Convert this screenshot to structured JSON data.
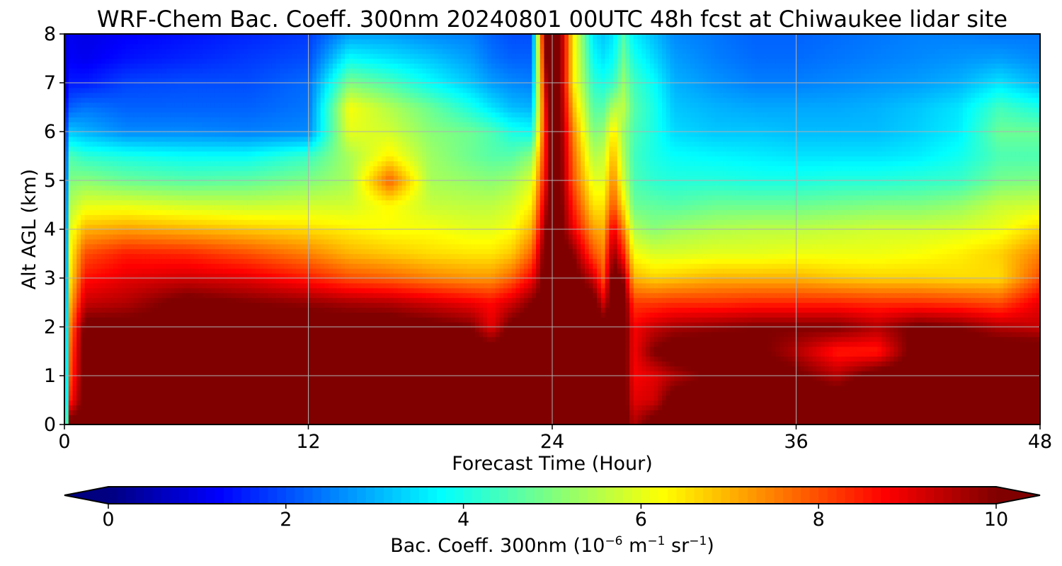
{
  "chart_data": {
    "type": "heatmap",
    "title": "WRF-Chem Bac. Coeff. 300nm  20240801 00UTC 48h fcst at Chiwaukee lidar site",
    "xlabel": "Forecast Time (Hour)",
    "ylabel": "Alt AGL (km)",
    "xlim": [
      0,
      48
    ],
    "ylim": [
      0,
      8
    ],
    "x_ticks": [
      0,
      12,
      24,
      36,
      48
    ],
    "y_ticks": [
      0,
      1,
      2,
      3,
      4,
      5,
      6,
      7,
      8
    ],
    "grid": true,
    "colorbar": {
      "label_main": "Bac. Coeff. 300nm  (10",
      "label_exp1": "−6",
      "label_mid": " m",
      "label_exp2": "−1",
      "label_mid2": " sr",
      "label_exp3": "−1",
      "label_end": ")",
      "range": [
        0,
        10
      ],
      "ticks": [
        0,
        2,
        4,
        6,
        8,
        10
      ],
      "extend": "both",
      "colormap": "jet"
    },
    "x": [
      0,
      0.3,
      1,
      3,
      6,
      9,
      12,
      14,
      16,
      18,
      20,
      21,
      22,
      23,
      23.7,
      24,
      24.3,
      25,
      26,
      26.5,
      27,
      27.5,
      28,
      29,
      30,
      32,
      34,
      36,
      38,
      40,
      42,
      44,
      46,
      48
    ],
    "y": [
      0,
      0.5,
      1,
      1.5,
      2,
      2.5,
      3,
      3.5,
      4,
      4.5,
      5,
      5.5,
      6,
      6.5,
      7,
      7.5,
      8
    ],
    "rows": [
      [
        1.5,
        10.5,
        10.5,
        10.5,
        10.5,
        10.5,
        10.5,
        10.5,
        10.5,
        10.5,
        10.5,
        10.5,
        10.5,
        10.5,
        10.5,
        10.5,
        10.5,
        10.5,
        10.5,
        10.5,
        10.5,
        10.5,
        9.5,
        10.5,
        10.5,
        10.5,
        10.5,
        10.5,
        10.5,
        10.5,
        10.5,
        10.5,
        10.5,
        10.5
      ],
      [
        1.5,
        8.5,
        10.5,
        10.5,
        10.5,
        10.5,
        10.5,
        10.5,
        10.5,
        10.5,
        10.5,
        10.5,
        10.5,
        10.5,
        10.5,
        10.5,
        10.5,
        10.5,
        10.5,
        10.5,
        10.5,
        10.5,
        9.0,
        9.2,
        10.5,
        10.5,
        10.5,
        10.5,
        10.5,
        10.5,
        10.5,
        10.5,
        10.5,
        10.5
      ],
      [
        1.5,
        8.0,
        10.5,
        10.5,
        10.5,
        10.5,
        10.5,
        10.5,
        10.5,
        10.5,
        10.5,
        10.5,
        10.5,
        10.5,
        10.5,
        10.5,
        10.5,
        10.5,
        10.5,
        10.5,
        10.5,
        10.5,
        8.8,
        9.0,
        9.5,
        10.2,
        10.5,
        10.2,
        9.5,
        10.5,
        10.5,
        10.5,
        10.5,
        10.5
      ],
      [
        1.5,
        7.8,
        10.5,
        10.5,
        10.5,
        10.5,
        10.5,
        10.5,
        10.5,
        10.5,
        10.5,
        10.5,
        10.5,
        10.5,
        10.5,
        10.5,
        10.5,
        10.5,
        10.5,
        10.5,
        10.5,
        10.5,
        8.8,
        10.0,
        10.5,
        10.5,
        10.2,
        9.5,
        8.5,
        8.5,
        10.5,
        10.5,
        10.5,
        10.5
      ],
      [
        1.5,
        7.5,
        10.3,
        10.3,
        10.2,
        10.2,
        10.5,
        10.5,
        10.5,
        10.3,
        10.0,
        9.0,
        10.3,
        10.5,
        10.5,
        10.5,
        10.5,
        10.5,
        10.5,
        10.5,
        10.5,
        10.5,
        8.8,
        9.3,
        9.6,
        9.8,
        10.0,
        10.0,
        10.0,
        9.5,
        10.2,
        10.0,
        9.5,
        9.3
      ],
      [
        1.5,
        7.0,
        9.3,
        9.5,
        10.3,
        10.0,
        9.8,
        9.6,
        9.5,
        9.2,
        8.9,
        8.7,
        9.2,
        10.0,
        10.5,
        10.5,
        10.5,
        10.5,
        10.5,
        9.2,
        10.5,
        10.5,
        8.2,
        8.2,
        8.3,
        8.3,
        8.4,
        8.4,
        8.4,
        8.3,
        8.3,
        8.2,
        8.0,
        9.0
      ],
      [
        1.5,
        6.5,
        8.6,
        9.0,
        9.2,
        9.0,
        8.5,
        8.0,
        7.8,
        7.5,
        7.3,
        7.3,
        7.8,
        8.8,
        10.5,
        10.5,
        10.5,
        10.5,
        9.3,
        8.0,
        10.5,
        9.8,
        7.0,
        6.7,
        6.8,
        7.0,
        7.0,
        7.0,
        6.8,
        6.7,
        6.7,
        6.6,
        6.6,
        8.0
      ],
      [
        1.5,
        6.3,
        8.0,
        8.5,
        8.4,
        8.0,
        7.5,
        7.0,
        6.8,
        6.6,
        6.5,
        6.5,
        6.8,
        7.8,
        10.5,
        10.5,
        10.5,
        10.0,
        8.0,
        7.5,
        9.8,
        8.5,
        6.2,
        5.9,
        5.9,
        6.0,
        6.0,
        6.1,
        6.1,
        6.1,
        6.2,
        6.4,
        6.7,
        7.5
      ],
      [
        1.5,
        6.0,
        7.0,
        7.2,
        7.0,
        6.8,
        6.6,
        6.4,
        6.2,
        6.2,
        6.0,
        6.0,
        6.2,
        7.0,
        10.0,
        10.5,
        10.5,
        9.0,
        7.2,
        7.0,
        9.0,
        7.5,
        5.5,
        5.1,
        5.3,
        5.5,
        5.6,
        5.6,
        5.7,
        5.8,
        5.8,
        5.9,
        6.1,
        6.7
      ],
      [
        1.5,
        5.5,
        6.0,
        6.0,
        5.8,
        5.7,
        5.8,
        5.8,
        6.3,
        5.7,
        5.6,
        5.6,
        5.8,
        6.4,
        9.5,
        10.5,
        10.5,
        8.5,
        6.5,
        6.5,
        8.0,
        6.5,
        4.8,
        4.7,
        4.6,
        4.8,
        4.8,
        4.8,
        4.9,
        5.0,
        5.0,
        5.2,
        5.7,
        5.8
      ],
      [
        1.5,
        5.0,
        5.1,
        4.8,
        4.6,
        4.7,
        5.0,
        5.4,
        7.8,
        5.4,
        5.2,
        5.1,
        5.3,
        5.9,
        9.0,
        10.5,
        10.5,
        8.0,
        6.0,
        6.0,
        7.5,
        5.8,
        4.5,
        4.2,
        4.1,
        4.1,
        4.0,
        4.0,
        4.1,
        4.1,
        4.2,
        4.3,
        4.9,
        5.0
      ],
      [
        1.5,
        4.5,
        4.2,
        4.0,
        3.8,
        3.8,
        4.3,
        5.4,
        6.4,
        5.3,
        4.8,
        4.6,
        4.6,
        5.1,
        8.8,
        10.5,
        10.5,
        7.8,
        5.5,
        5.7,
        7.0,
        5.5,
        4.4,
        4.0,
        3.8,
        3.7,
        3.6,
        3.5,
        3.5,
        3.5,
        3.6,
        3.9,
        4.5,
        4.5
      ],
      [
        1.5,
        3.2,
        3.0,
        2.6,
        2.6,
        2.5,
        2.6,
        6.0,
        5.8,
        5.1,
        4.8,
        4.5,
        4.0,
        3.8,
        8.8,
        10.5,
        10.5,
        7.5,
        5.0,
        5.2,
        6.5,
        5.3,
        4.5,
        4.0,
        3.4,
        3.2,
        3.2,
        3.1,
        3.1,
        3.1,
        3.3,
        3.6,
        4.8,
        4.8
      ],
      [
        1.2,
        2.2,
        2.4,
        2.2,
        2.2,
        2.2,
        2.4,
        6.2,
        5.5,
        4.8,
        4.0,
        3.5,
        3.1,
        3.0,
        9.0,
        10.5,
        10.5,
        7.0,
        4.6,
        4.6,
        5.5,
        5.6,
        4.6,
        4.0,
        3.2,
        3.0,
        2.9,
        2.9,
        2.9,
        3.0,
        3.2,
        3.5,
        4.4,
        4.0
      ],
      [
        0.8,
        1.5,
        1.5,
        1.9,
        2.0,
        2.0,
        2.3,
        5.0,
        4.5,
        3.8,
        3.2,
        2.8,
        2.6,
        2.5,
        9.5,
        10.5,
        10.5,
        6.5,
        4.2,
        4.0,
        4.3,
        5.2,
        4.4,
        3.8,
        3.0,
        2.7,
        2.5,
        2.5,
        2.6,
        2.7,
        2.8,
        3.0,
        3.5,
        3.0
      ],
      [
        0.8,
        1.2,
        1.1,
        1.4,
        1.6,
        1.8,
        2.0,
        3.8,
        3.5,
        3.2,
        2.8,
        2.4,
        2.2,
        2.2,
        10.0,
        10.5,
        10.5,
        6.5,
        3.8,
        3.5,
        3.8,
        4.8,
        4.0,
        3.4,
        2.8,
        2.5,
        2.3,
        2.3,
        2.4,
        2.5,
        2.6,
        2.7,
        2.8,
        2.6
      ],
      [
        0.8,
        1.1,
        1.0,
        1.2,
        1.4,
        1.6,
        1.8,
        2.8,
        2.8,
        2.6,
        2.5,
        2.2,
        2.0,
        2.0,
        10.5,
        10.5,
        10.5,
        6.5,
        3.5,
        3.2,
        3.5,
        4.5,
        3.6,
        3.1,
        2.6,
        2.4,
        2.2,
        2.2,
        2.3,
        2.4,
        2.5,
        2.5,
        2.4,
        2.4
      ]
    ]
  }
}
